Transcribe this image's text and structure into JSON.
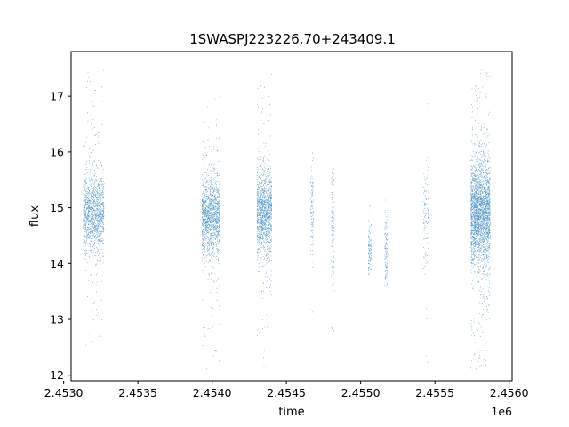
{
  "chart_data": {
    "type": "scatter",
    "title": "1SWASPJ223226.70+243409.1",
    "xlabel": "time",
    "ylabel": "flux",
    "x_offset_label": "1e6",
    "xlim": [
      2.45305,
      2.45602
    ],
    "ylim": [
      11.9,
      17.8
    ],
    "x_ticks": [
      2.453,
      2.4535,
      2.454,
      2.4545,
      2.455,
      2.4555,
      2.456
    ],
    "x_tick_labels": [
      "2.4530",
      "2.4535",
      "2.4540",
      "2.4545",
      "2.4550",
      "2.4555",
      "2.4560"
    ],
    "y_ticks": [
      12,
      13,
      14,
      15,
      16,
      17
    ],
    "y_tick_labels": [
      "12",
      "13",
      "14",
      "15",
      "16",
      "17"
    ],
    "grid": false,
    "legend": "none",
    "point_color": "#1f77b4",
    "clusters": [
      {
        "x_min": 2.45313,
        "x_max": 2.45327,
        "y_center": 14.9,
        "y_spread": 0.35,
        "y_min": 12.2,
        "y_max": 17.5,
        "density": "high"
      },
      {
        "x_min": 2.45393,
        "x_max": 2.45405,
        "y_center": 14.85,
        "y_spread": 0.35,
        "y_min": 12.1,
        "y_max": 17.4,
        "density": "high"
      },
      {
        "x_min": 2.4543,
        "x_max": 2.4544,
        "y_center": 14.9,
        "y_spread": 0.35,
        "y_min": 12.1,
        "y_max": 17.5,
        "density": "high"
      },
      {
        "x_min": 2.45466,
        "x_max": 2.45468,
        "y_center": 14.9,
        "y_spread": 0.4,
        "y_min": 13.0,
        "y_max": 16.0,
        "density": "low"
      },
      {
        "x_min": 2.4548,
        "x_max": 2.45482,
        "y_center": 14.6,
        "y_spread": 0.6,
        "y_min": 12.6,
        "y_max": 15.7,
        "density": "low"
      },
      {
        "x_min": 2.45505,
        "x_max": 2.45507,
        "y_center": 14.2,
        "y_spread": 0.25,
        "y_min": 13.8,
        "y_max": 15.2,
        "density": "low"
      },
      {
        "x_min": 2.45516,
        "x_max": 2.45518,
        "y_center": 14.2,
        "y_spread": 0.3,
        "y_min": 13.6,
        "y_max": 15.2,
        "density": "low"
      },
      {
        "x_min": 2.45542,
        "x_max": 2.45546,
        "y_center": 15.0,
        "y_spread": 0.5,
        "y_min": 12.1,
        "y_max": 17.3,
        "density": "low"
      },
      {
        "x_min": 2.45574,
        "x_max": 2.45587,
        "y_center": 14.9,
        "y_spread": 0.45,
        "y_min": 12.1,
        "y_max": 17.5,
        "density": "very-high"
      }
    ]
  }
}
